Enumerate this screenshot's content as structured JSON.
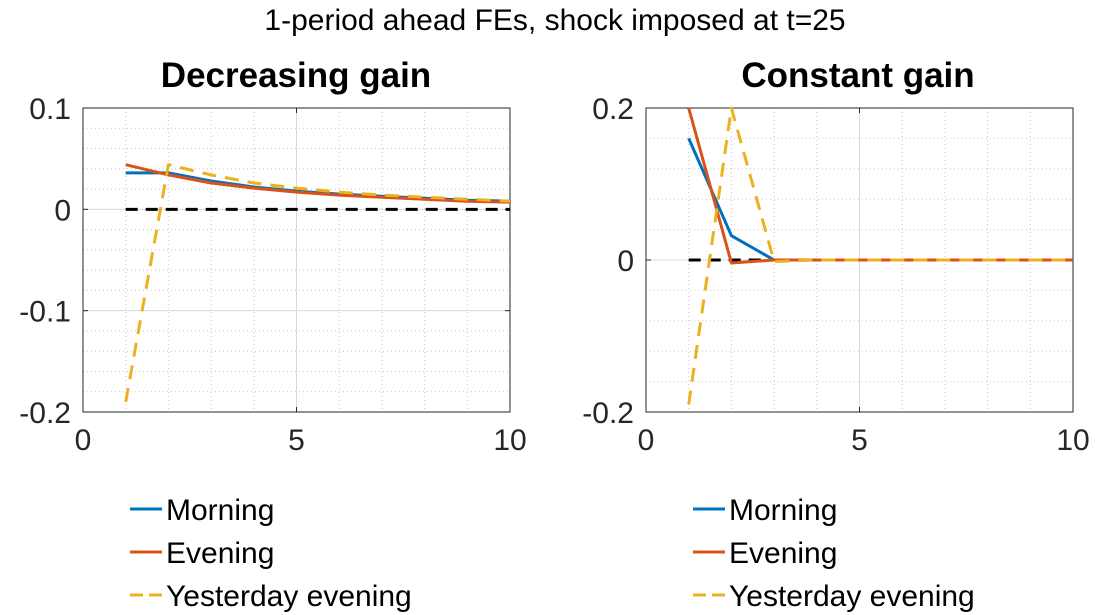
{
  "suptitle": "1-period ahead FEs, shock imposed at t=25",
  "colors": {
    "morning": "#0072BD",
    "evening": "#D95319",
    "yesterday_evening": "#EDB120",
    "zero_line": "#000000",
    "grid": "#d9d9d9"
  },
  "chart_data": [
    {
      "type": "line",
      "title": "Decreasing gain",
      "xlabel": "",
      "ylabel": "",
      "xlim": [
        0,
        10
      ],
      "ylim": [
        -0.2,
        0.1
      ],
      "xticks": [
        0,
        5,
        10
      ],
      "xtick_labels": [
        "0",
        "5",
        "10"
      ],
      "yticks": [
        -0.2,
        -0.1,
        0,
        0.1
      ],
      "ytick_labels": [
        "-0.2",
        "-0.1",
        "0",
        "0.1"
      ],
      "grid": true,
      "minor_grid": true,
      "legend_position": "below",
      "reference_line": {
        "y": 0,
        "style": "dashed",
        "color": "#000000"
      },
      "series": [
        {
          "name": "Morning",
          "style": "solid",
          "color": "#0072BD",
          "x": [
            1,
            2,
            3,
            4,
            5,
            6,
            7,
            8,
            9,
            10
          ],
          "y": [
            0.036,
            0.036,
            0.028,
            0.022,
            0.018,
            0.015,
            0.013,
            0.011,
            0.009,
            0.008
          ]
        },
        {
          "name": "Evening",
          "style": "solid",
          "color": "#D95319",
          "x": [
            1,
            2,
            3,
            4,
            5,
            6,
            7,
            8,
            9,
            10
          ],
          "y": [
            0.044,
            0.034,
            0.026,
            0.021,
            0.017,
            0.014,
            0.012,
            0.01,
            0.008,
            0.007
          ]
        },
        {
          "name": "Yesterday evening",
          "style": "dashed",
          "color": "#EDB120",
          "x": [
            1,
            2,
            3,
            4,
            5,
            6,
            7,
            8,
            9,
            10
          ],
          "y": [
            -0.19,
            0.044,
            0.034,
            0.026,
            0.021,
            0.017,
            0.014,
            0.012,
            0.01,
            0.008
          ]
        }
      ]
    },
    {
      "type": "line",
      "title": "Constant gain",
      "xlabel": "",
      "ylabel": "",
      "xlim": [
        0,
        10
      ],
      "ylim": [
        -0.2,
        0.2
      ],
      "xticks": [
        0,
        5,
        10
      ],
      "xtick_labels": [
        "0",
        "5",
        "10"
      ],
      "yticks": [
        -0.2,
        0,
        0.2
      ],
      "ytick_labels": [
        "-0.2",
        "0",
        "0.2"
      ],
      "grid": true,
      "minor_grid": true,
      "legend_position": "below",
      "reference_line": {
        "y": 0,
        "style": "dashed",
        "color": "#000000"
      },
      "series": [
        {
          "name": "Morning",
          "style": "solid",
          "color": "#0072BD",
          "x": [
            1,
            2,
            3,
            4,
            5,
            6,
            7,
            8,
            9,
            10
          ],
          "y": [
            0.16,
            0.032,
            0.0,
            0.0,
            0.0,
            0.0,
            0.0,
            0.0,
            0.0,
            0.0
          ]
        },
        {
          "name": "Evening",
          "style": "solid",
          "color": "#D95319",
          "x": [
            1,
            2,
            3,
            4,
            5,
            6,
            7,
            8,
            9,
            10
          ],
          "y": [
            0.2,
            -0.004,
            0.0,
            0.0,
            0.0,
            0.0,
            0.0,
            0.0,
            0.0,
            0.0
          ]
        },
        {
          "name": "Yesterday evening",
          "style": "dashed",
          "color": "#EDB120",
          "x": [
            1,
            2,
            3,
            4,
            5,
            6,
            7,
            8,
            9,
            10
          ],
          "y": [
            -0.19,
            0.2,
            -0.002,
            0.0,
            0.0,
            0.0,
            0.0,
            0.0,
            0.0,
            0.0
          ]
        }
      ]
    }
  ]
}
